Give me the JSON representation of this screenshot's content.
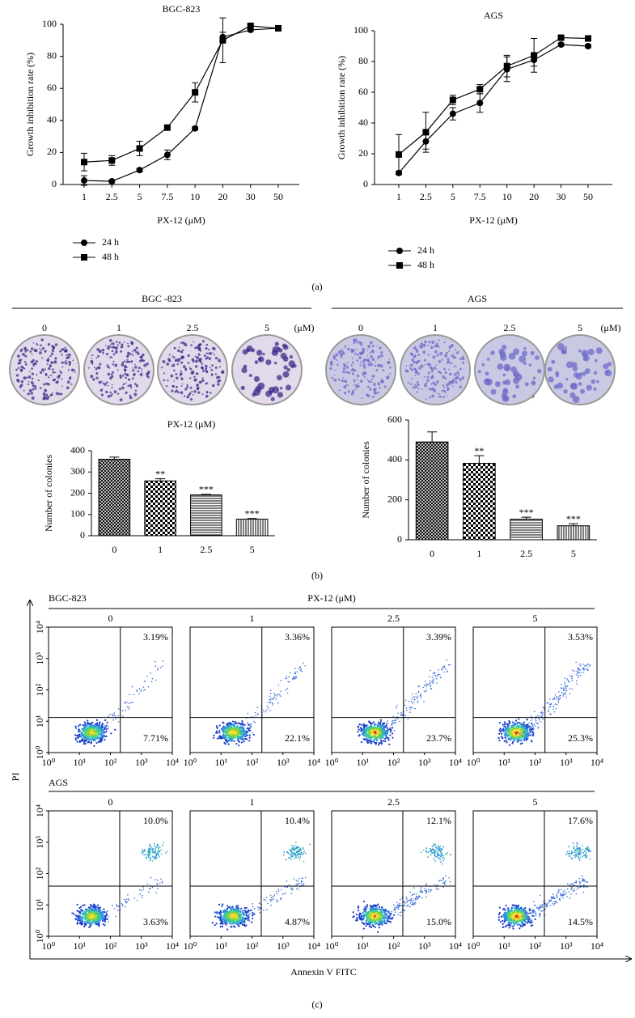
{
  "panel_labels": [
    "(a)",
    "(b)",
    "(c)"
  ],
  "chart_data": [
    {
      "type": "line",
      "title": "BGC-823",
      "x_label": "PX-12 (μM)",
      "y_label": "Growth inhibition rate (%)",
      "categories": [
        "1",
        "2.5",
        "5",
        "7.5",
        "10",
        "20",
        "30",
        "50"
      ],
      "ylim": [
        0,
        100
      ],
      "yticks": [
        0,
        20,
        40,
        60,
        80,
        100
      ],
      "series": [
        {
          "name": "24 h",
          "color": "#000000",
          "marker": "circle",
          "values": [
            2.5,
            2,
            9,
            18.5,
            35,
            92,
            96.5,
            97.5
          ],
          "errors": [
            3,
            1,
            1,
            3,
            1,
            3,
            1,
            1
          ]
        },
        {
          "name": "48 h",
          "color": "#000000",
          "marker": "square",
          "values": [
            14,
            15,
            22.5,
            35.5,
            57.5,
            90,
            99,
            97.5
          ],
          "errors": [
            5.5,
            3,
            4.5,
            1,
            6,
            14,
            1,
            1
          ]
        }
      ]
    },
    {
      "type": "line",
      "title": "AGS",
      "x_label": "PX-12 (μM)",
      "y_label": "Growth inhibition rate (%)",
      "categories": [
        "1",
        "2.5",
        "5",
        "7.5",
        "10",
        "20",
        "30",
        "50"
      ],
      "ylim": [
        0,
        100
      ],
      "yticks": [
        0,
        20,
        40,
        60,
        80,
        100
      ],
      "series": [
        {
          "name": "24 h",
          "color": "#000000",
          "marker": "circle",
          "values": [
            7.5,
            28,
            46,
            53,
            75,
            81,
            91,
            90
          ],
          "errors": [
            1,
            5,
            4,
            6,
            8,
            4,
            1,
            1
          ]
        },
        {
          "name": "48 h",
          "color": "#000000",
          "marker": "square",
          "values": [
            19.5,
            34,
            55,
            62,
            77,
            84,
            95.5,
            95
          ],
          "errors": [
            13,
            13,
            3,
            3,
            7,
            11,
            1,
            1
          ]
        }
      ]
    },
    {
      "type": "bar",
      "x_label": "PX-12 (μM)",
      "y_label": "Number of colonies",
      "categories": [
        "0",
        "1",
        "2.5",
        "5"
      ],
      "values": [
        360,
        258,
        192,
        78
      ],
      "errors": [
        10,
        10,
        3,
        3
      ],
      "annotations": [
        null,
        "**",
        "***",
        "***"
      ],
      "patterns": [
        "crosshatch",
        "checker",
        "hlines",
        "vlines"
      ],
      "color": "#000000",
      "ylim": [
        0,
        400
      ],
      "yticks": [
        0,
        100,
        200,
        300,
        400
      ]
    },
    {
      "type": "bar",
      "x_label": "PX-12 (μM)",
      "y_label": "Number of colonies",
      "categories": [
        "0",
        "1",
        "2.5",
        "5"
      ],
      "values": [
        490,
        383,
        103,
        70
      ],
      "errors": [
        50,
        38,
        10,
        10
      ],
      "annotations": [
        null,
        "**",
        "***",
        "***"
      ],
      "patterns": [
        "crosshatch",
        "checker",
        "hlines",
        "vlines"
      ],
      "color": "#000000",
      "ylim": [
        0,
        600
      ],
      "yticks": [
        0,
        200,
        400,
        600
      ]
    }
  ],
  "colony_assay": [
    {
      "name": "BGC -823",
      "concentrations": [
        "0",
        "1",
        "2.5",
        "5"
      ],
      "unit": "(μM)"
    },
    {
      "name": "AGS",
      "concentrations": [
        "0",
        "1",
        "2.5",
        "5"
      ],
      "unit": "(μM)"
    }
  ],
  "flow": {
    "condition_label": "PX-12 (μM)",
    "x_label": "Annexin V FITC",
    "y_label": "PI",
    "ticks": [
      "10⁰",
      "10¹",
      "10²",
      "10³",
      "10⁴"
    ],
    "rows": [
      {
        "name": "BGC-823",
        "concentrations": [
          "0",
          "1",
          "2.5",
          "5"
        ],
        "upper_right": [
          "3.19%",
          "3.36%",
          "3.39%",
          "3.53%"
        ],
        "lower_right": [
          "7.71%",
          "22.1%",
          "23.7%",
          "25.3%"
        ]
      },
      {
        "name": "AGS",
        "concentrations": [
          "0",
          "1",
          "2.5",
          "5"
        ],
        "upper_right": [
          "10.0%",
          "10.4%",
          "12.1%",
          "17.6%"
        ],
        "lower_right": [
          "3.63%",
          "4.87%",
          "15.0%",
          "14.5%"
        ]
      }
    ]
  }
}
